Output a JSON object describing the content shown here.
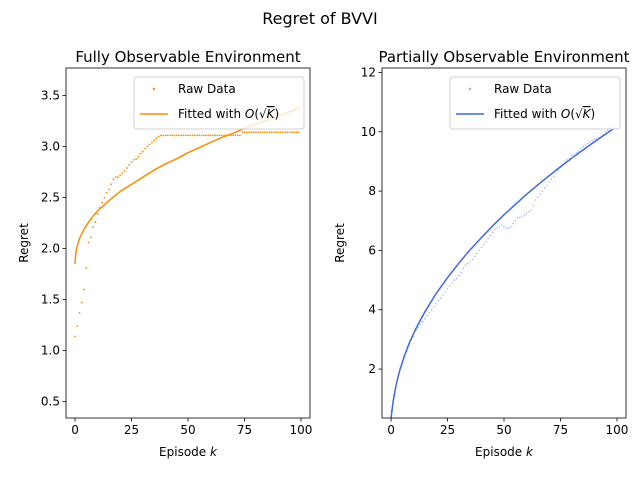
{
  "suptitle": "Regret of BVVI",
  "chart_data": [
    {
      "type": "scatter+line",
      "title": "Fully Observable Environment",
      "xlabel": "Episode k",
      "ylabel": "Regret",
      "xlim": [
        -4,
        104
      ],
      "ylim": [
        0.34,
        3.77
      ],
      "xticks": [
        0,
        25,
        50,
        75,
        100
      ],
      "yticks": [
        0.5,
        1.0,
        1.5,
        2.0,
        2.5,
        3.0,
        3.5
      ],
      "ytick_format": 1,
      "legend_position": "upper right",
      "color": "#ff8c00",
      "series": [
        {
          "name": "Raw Data",
          "kind": "points",
          "x": [
            0,
            1,
            2,
            3,
            4,
            5,
            6,
            7,
            8,
            9,
            10,
            11,
            12,
            13,
            14,
            15,
            16,
            17,
            18,
            19,
            20,
            21,
            22,
            23,
            24,
            25,
            26,
            27,
            28,
            29,
            30,
            31,
            32,
            33,
            34,
            35,
            36,
            37,
            38,
            39,
            40,
            41,
            42,
            43,
            44,
            45,
            46,
            47,
            48,
            49,
            50,
            51,
            52,
            53,
            54,
            55,
            56,
            57,
            58,
            59,
            60,
            61,
            62,
            63,
            64,
            65,
            66,
            67,
            68,
            69,
            70,
            71,
            72,
            73,
            74,
            75,
            76,
            77,
            78,
            79,
            80,
            81,
            82,
            83,
            84,
            85,
            86,
            87,
            88,
            89,
            90,
            91,
            92,
            93,
            94,
            95,
            96,
            97,
            98,
            99
          ],
          "y": [
            1.14,
            1.24,
            1.37,
            1.47,
            1.6,
            1.81,
            2.06,
            2.11,
            2.21,
            2.26,
            2.34,
            2.4,
            2.45,
            2.5,
            2.55,
            2.58,
            2.63,
            2.68,
            2.7,
            2.7,
            2.72,
            2.74,
            2.76,
            2.79,
            2.82,
            2.85,
            2.87,
            2.88,
            2.9,
            2.93,
            2.95,
            2.98,
            3.0,
            3.02,
            3.04,
            3.06,
            3.08,
            3.1,
            3.11,
            3.11,
            3.11,
            3.11,
            3.11,
            3.11,
            3.11,
            3.11,
            3.11,
            3.11,
            3.11,
            3.11,
            3.11,
            3.11,
            3.11,
            3.11,
            3.11,
            3.11,
            3.11,
            3.11,
            3.11,
            3.11,
            3.11,
            3.11,
            3.11,
            3.11,
            3.11,
            3.11,
            3.11,
            3.11,
            3.11,
            3.11,
            3.11,
            3.11,
            3.11,
            3.11,
            3.14,
            3.14,
            3.14,
            3.14,
            3.14,
            3.14,
            3.14,
            3.14,
            3.14,
            3.14,
            3.14,
            3.14,
            3.14,
            3.14,
            3.14,
            3.14,
            3.14,
            3.14,
            3.14,
            3.14,
            3.14,
            3.14,
            3.14,
            3.14,
            3.14,
            3.14
          ]
        },
        {
          "name": "Fitted with O(√K)",
          "kind": "line",
          "x": [
            0,
            0.1,
            0.5,
            1,
            2,
            4,
            6,
            8,
            10,
            12,
            15,
            20,
            25,
            30,
            35,
            40,
            45,
            50,
            55,
            60,
            65,
            70,
            75,
            80,
            85,
            90,
            95,
            99
          ],
          "y": [
            1.85,
            1.9,
            1.98,
            2.03,
            2.1,
            2.19,
            2.26,
            2.32,
            2.37,
            2.41,
            2.47,
            2.56,
            2.63,
            2.7,
            2.77,
            2.83,
            2.88,
            2.94,
            2.99,
            3.04,
            3.09,
            3.13,
            3.18,
            3.22,
            3.26,
            3.3,
            3.34,
            3.38
          ]
        }
      ]
    },
    {
      "type": "scatter+line",
      "title": "Partially Observable Environment",
      "xlabel": "Episode k",
      "ylabel": "Regret",
      "xlim": [
        -4,
        104
      ],
      "ylim": [
        0.35,
        12.15
      ],
      "xticks": [
        0,
        25,
        50,
        75,
        100
      ],
      "yticks": [
        2,
        4,
        6,
        8,
        10,
        12
      ],
      "ytick_format": 0,
      "legend_position": "upper right",
      "color": "#4169e1",
      "series": [
        {
          "name": "Raw Data",
          "kind": "points",
          "x": [
            0,
            1,
            2,
            3,
            4,
            5,
            6,
            7,
            8,
            9,
            10,
            11,
            12,
            13,
            14,
            15,
            16,
            17,
            18,
            19,
            20,
            21,
            22,
            23,
            24,
            25,
            26,
            27,
            28,
            29,
            30,
            31,
            32,
            33,
            34,
            35,
            36,
            37,
            38,
            39,
            40,
            41,
            42,
            43,
            44,
            45,
            46,
            47,
            48,
            49,
            50,
            51,
            52,
            53,
            54,
            55,
            56,
            57,
            58,
            59,
            60,
            61,
            62,
            63,
            64,
            65,
            66,
            67,
            68,
            69,
            70,
            71,
            72,
            73,
            74,
            75,
            76,
            77,
            78,
            79,
            80,
            81,
            82,
            83,
            84,
            85,
            86,
            87,
            88,
            89,
            90,
            91,
            92,
            93,
            94,
            95,
            96,
            97,
            98,
            99
          ],
          "y": [
            0.6,
            1.1,
            1.4,
            1.7,
            2.0,
            2.2,
            2.4,
            2.6,
            2.8,
            3.0,
            3.1,
            3.3,
            3.4,
            3.5,
            3.6,
            3.7,
            3.8,
            3.9,
            4.0,
            4.1,
            4.2,
            4.3,
            4.4,
            4.5,
            4.6,
            4.7,
            4.8,
            4.9,
            5.0,
            5.05,
            5.15,
            5.25,
            5.4,
            5.5,
            5.55,
            5.6,
            5.7,
            5.8,
            5.9,
            6.0,
            6.1,
            6.2,
            6.3,
            6.4,
            6.5,
            6.6,
            6.7,
            6.75,
            6.8,
            6.85,
            6.8,
            6.75,
            6.75,
            6.8,
            6.9,
            7.0,
            7.1,
            7.1,
            7.15,
            7.2,
            7.25,
            7.3,
            7.35,
            7.5,
            7.7,
            7.8,
            7.9,
            8.0,
            8.1,
            8.2,
            8.3,
            8.4,
            8.5,
            8.6,
            8.7,
            8.8,
            8.9,
            9.0,
            9.05,
            9.1,
            9.2,
            9.25,
            9.3,
            9.35,
            9.45,
            9.5,
            9.55,
            9.6,
            9.65,
            9.7,
            9.75,
            9.75,
            9.8,
            9.85,
            9.9,
            10.0,
            10.05,
            10.1,
            10.15,
            10.2
          ]
        },
        {
          "name": "Fitted with O(√K)",
          "kind": "line",
          "x": [
            0,
            0.1,
            0.5,
            1,
            2,
            3,
            4,
            6,
            8,
            10,
            12,
            15,
            20,
            25,
            30,
            35,
            40,
            45,
            50,
            55,
            60,
            65,
            70,
            75,
            80,
            85,
            90,
            95,
            99
          ],
          "y": [
            0.35,
            0.41,
            0.65,
            0.94,
            1.37,
            1.71,
            1.99,
            2.46,
            2.86,
            3.2,
            3.51,
            3.93,
            4.55,
            5.08,
            5.57,
            6.02,
            6.43,
            6.83,
            7.2,
            7.55,
            7.89,
            8.21,
            8.52,
            8.82,
            9.11,
            9.39,
            9.66,
            9.92,
            10.13
          ]
        }
      ]
    }
  ]
}
